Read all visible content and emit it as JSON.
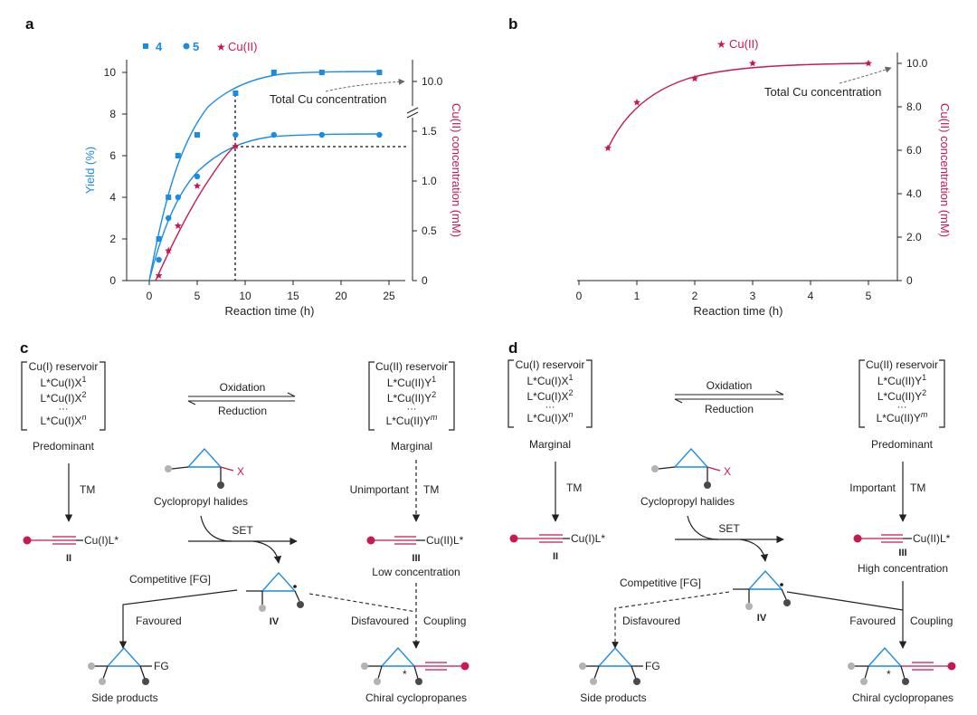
{
  "panel_labels": {
    "a": "a",
    "b": "b",
    "c": "c",
    "d": "d"
  },
  "colors": {
    "blue": "#1a8ce6",
    "red": "#c8194f",
    "dark": "#222222",
    "gray": "#b3b3b3",
    "darkdot": "#4a4a4a"
  },
  "chart_data": [
    {
      "panel": "a",
      "type": "line",
      "xlabel": "Reaction time (h)",
      "ylabel": "Yield (%)",
      "y2label": "Cu(II) concentration (mM)",
      "xlim": [
        0,
        25
      ],
      "ylim": [
        0,
        10.5
      ],
      "x_ticks": [
        "0",
        "5",
        "10",
        "15",
        "20",
        "25"
      ],
      "y_ticks": [
        "0",
        "2",
        "4",
        "6",
        "8",
        "10"
      ],
      "y2_ticks": [
        "0",
        "0.5",
        "1.0",
        "1.5",
        "10.0"
      ],
      "y2_axis_break": true,
      "legend": [
        "4",
        "5",
        "Cu(II)"
      ],
      "annotation": "Total Cu concentration",
      "series": [
        {
          "name": "4",
          "marker": "square",
          "x": [
            1,
            2,
            3,
            5,
            9,
            13,
            18,
            24
          ],
          "y": [
            2,
            4,
            6,
            7,
            9,
            10,
            10,
            10
          ]
        },
        {
          "name": "5",
          "marker": "circle",
          "x": [
            1,
            2,
            3,
            5,
            9,
            13,
            18,
            24
          ],
          "y": [
            1,
            3,
            4,
            5,
            7,
            7,
            7,
            7
          ]
        },
        {
          "name": "Cu(II)",
          "marker": "star",
          "x": [
            1,
            2,
            3,
            5,
            9
          ],
          "y_mM": [
            0.05,
            0.3,
            0.55,
            0.95,
            1.35
          ]
        }
      ],
      "reference_lines": {
        "x": 9,
        "y": 6.4
      }
    },
    {
      "panel": "b",
      "type": "line",
      "xlabel": "Reaction time (h)",
      "ylabel": "Cu(II) concentration (mM)",
      "xlim": [
        0,
        5.5
      ],
      "ylim": [
        0,
        10.5
      ],
      "x_ticks": [
        "0",
        "1",
        "2",
        "3",
        "4",
        "5"
      ],
      "y_ticks": [
        "0",
        "2.0",
        "4.0",
        "6.0",
        "8.0",
        "10.0"
      ],
      "legend": [
        "Cu(II)"
      ],
      "annotation": "Total Cu concentration",
      "series": [
        {
          "name": "Cu(II)",
          "marker": "star",
          "x": [
            0.5,
            1,
            2,
            3,
            5
          ],
          "y": [
            6.1,
            8.2,
            9.3,
            10.0,
            10.0
          ]
        }
      ]
    }
  ],
  "scheme_c": {
    "cu1_title": "Cu(I) reservoir",
    "cu1_l1": "L*Cu(I)X",
    "cu1_s1": "1",
    "cu1_l2": "L*Cu(I)X",
    "cu1_s2": "2",
    "dots": "···",
    "cu1_l3": "L*Cu(I)X",
    "cu1_s3": "n",
    "cu2_title": "Cu(II) reservoir",
    "cu2_l1": "L*Cu(II)Y",
    "cu2_s1": "1",
    "cu2_l2": "L*Cu(II)Y",
    "cu2_s2": "2",
    "cu2_l3": "L*Cu(II)Y",
    "cu2_s3": "m",
    "oxidation": "Oxidation",
    "reduction": "Reduction",
    "left_status": "Predominant",
    "right_status": "Marginal",
    "tm": "TM",
    "right_tm_note": "Unimportant",
    "halides": "Cyclopropyl halides",
    "halide_x": "X",
    "set": "SET",
    "cu1_species": "Cu(I)L*",
    "cu2_species": "Cu(II)L*",
    "ii": "II",
    "iii": "III",
    "iv": "IV",
    "concentration": "Low concentration",
    "competitive": "Competitive [FG]",
    "left_path": "Favoured",
    "right_path": "Disfavoured",
    "coupling": "Coupling",
    "fg": "FG",
    "side_products": "Side products",
    "chiral": "Chiral cyclopropanes",
    "star": "*"
  },
  "scheme_d": {
    "cu1_title": "Cu(I) reservoir",
    "cu1_l1": "L*Cu(I)X",
    "cu1_s1": "1",
    "cu1_l2": "L*Cu(I)X",
    "cu1_s2": "2",
    "dots": "···",
    "cu1_l3": "L*Cu(I)X",
    "cu1_s3": "n",
    "cu2_title": "Cu(II) reservoir",
    "cu2_l1": "L*Cu(II)Y",
    "cu2_s1": "1",
    "cu2_l2": "L*Cu(II)Y",
    "cu2_s2": "2",
    "cu2_l3": "L*Cu(II)Y",
    "cu2_s3": "m",
    "oxidation": "Oxidation",
    "reduction": "Reduction",
    "left_status": "Marginal",
    "right_status": "Predominant",
    "tm": "TM",
    "right_tm_note": "Important",
    "halides": "Cyclopropyl halides",
    "halide_x": "X",
    "set": "SET",
    "cu1_species": "Cu(I)L*",
    "cu2_species": "Cu(II)L*",
    "ii": "II",
    "iii": "III",
    "iv": "IV",
    "concentration": "High concentration",
    "competitive": "Competitive [FG]",
    "left_path": "Disfavoured",
    "right_path": "Favoured",
    "coupling": "Coupling",
    "fg": "FG",
    "side_products": "Side products",
    "chiral": "Chiral cyclopropanes",
    "star": "*"
  }
}
